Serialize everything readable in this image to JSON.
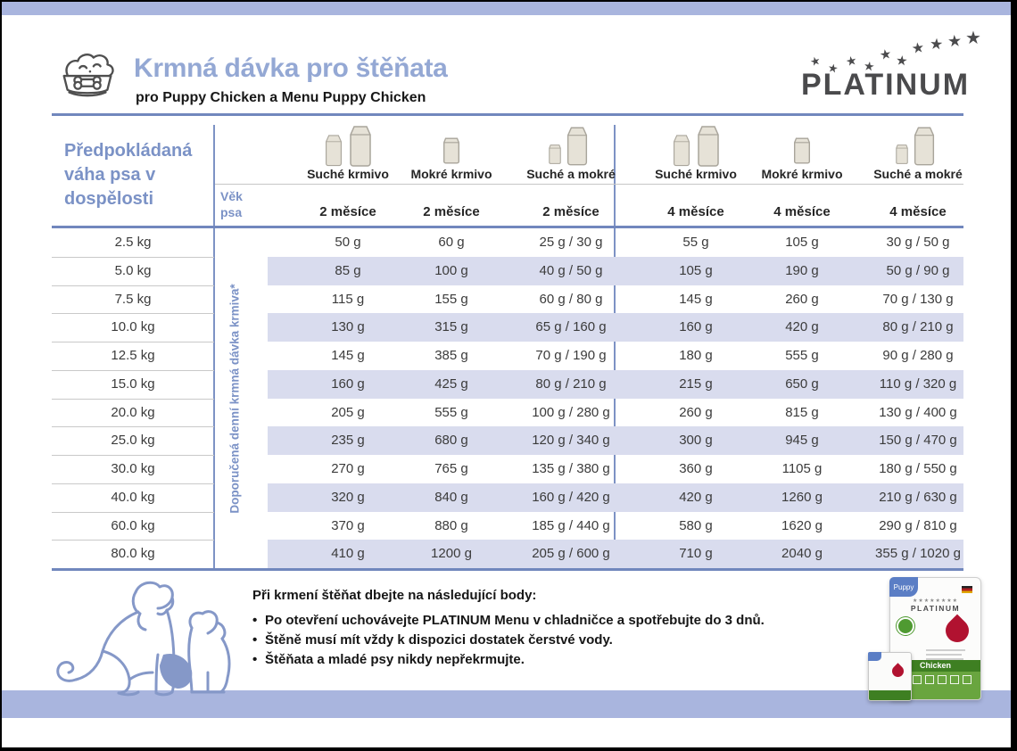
{
  "colors": {
    "accent_band": "#a9b5de",
    "line_blue": "#7187bd",
    "row_shade": "#d9dcee",
    "title_blue": "#94a8d4",
    "logo_gray": "#4a4a4c"
  },
  "header": {
    "title": "Krmná dávka pro štěňata",
    "subtitle": "pro Puppy Chicken a Menu Puppy Chicken",
    "brand": "PLATINUM",
    "star_count": 10
  },
  "table": {
    "weight_header": "Předpokládaná váha psa v dospělosti",
    "age_header_line1": "Věk",
    "age_header_line2": "psa",
    "side_label": "Doporučená denní krmná dávka krmiva*",
    "column_types": [
      "Suché krmivo",
      "Mokré krmivo",
      "Suché a mokré"
    ],
    "groups": [
      {
        "age": "2 měsíce"
      },
      {
        "age": "4 měsíce"
      }
    ],
    "rows": [
      {
        "weight": "2.5 kg",
        "values": [
          "50 g",
          "60 g",
          "25 g / 30 g",
          "55 g",
          "105 g",
          "30 g / 50 g"
        ]
      },
      {
        "weight": "5.0 kg",
        "values": [
          "85 g",
          "100 g",
          "40 g / 50 g",
          "105 g",
          "190 g",
          "50 g / 90 g"
        ]
      },
      {
        "weight": "7.5 kg",
        "values": [
          "115 g",
          "155 g",
          "60 g / 80 g",
          "145 g",
          "260 g",
          "70 g / 130 g"
        ]
      },
      {
        "weight": "10.0 kg",
        "values": [
          "130 g",
          "315 g",
          "65 g / 160 g",
          "160 g",
          "420 g",
          "80 g / 210 g"
        ]
      },
      {
        "weight": "12.5 kg",
        "values": [
          "145 g",
          "385 g",
          "70 g / 190 g",
          "180 g",
          "555 g",
          "90 g / 280 g"
        ]
      },
      {
        "weight": "15.0 kg",
        "values": [
          "160 g",
          "425 g",
          "80 g / 210 g",
          "215 g",
          "650 g",
          "110 g / 320 g"
        ]
      },
      {
        "weight": "20.0 kg",
        "values": [
          "205 g",
          "555 g",
          "100 g / 280 g",
          "260 g",
          "815 g",
          "130 g / 400 g"
        ]
      },
      {
        "weight": "25.0 kg",
        "values": [
          "235 g",
          "680 g",
          "120 g / 340 g",
          "300 g",
          "945 g",
          "150 g / 470 g"
        ]
      },
      {
        "weight": "30.0 kg",
        "values": [
          "270 g",
          "765 g",
          "135 g / 380 g",
          "360 g",
          "1105 g",
          "180 g / 550 g"
        ]
      },
      {
        "weight": "40.0 kg",
        "values": [
          "320 g",
          "840 g",
          "160 g / 420 g",
          "420 g",
          "1260 g",
          "210 g / 630 g"
        ]
      },
      {
        "weight": "60.0 kg",
        "values": [
          "370 g",
          "880 g",
          "185 g / 440 g",
          "580 g",
          "1620 g",
          "290 g / 810 g"
        ]
      },
      {
        "weight": "80.0 kg",
        "values": [
          "410 g",
          "1200 g",
          "205 g / 600 g",
          "710 g",
          "2040 g",
          "355 g / 1020 g"
        ]
      }
    ]
  },
  "footer": {
    "heading": "Při krmení štěňat dbejte na následující body:",
    "bullets": [
      "Po otevření uchovávejte PLATINUM Menu v chladničce a spotřebujte do 3 dnů.",
      "Štěně musí mít vždy k dispozici dostatek čerstvé vody.",
      "Štěňata a mladé psy nikdy nepřekrmujte."
    ],
    "product": {
      "line": "Puppy",
      "brand": "PLATINUM",
      "flavor": "Chicken",
      "stars_row": "★★★★★★★★"
    }
  }
}
